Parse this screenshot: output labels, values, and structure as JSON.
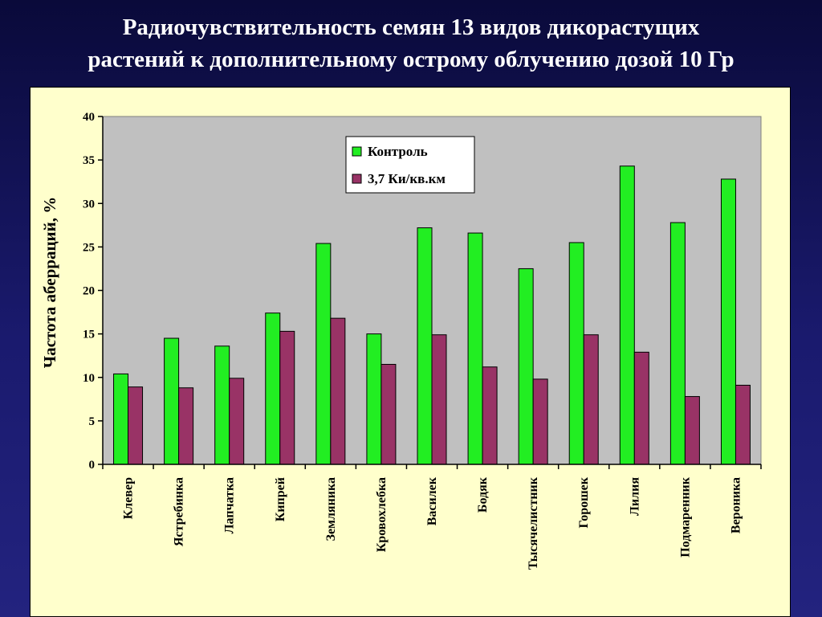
{
  "slide": {
    "title_line1": "Радиочувствительность семян 13 видов дикорастущих",
    "title_line2": "растений к дополнительному острому облучению дозой 10 Гр"
  },
  "chart_data": {
    "type": "bar",
    "title": "Радиочувствительность семян 13 видов дикорастущих растений к дополнительному острому облучению дозой 10 Гр",
    "ylabel": "Частота аберраций, %",
    "xlabel": "",
    "ylim": [
      0,
      40
    ],
    "yticks": [
      0,
      5,
      10,
      15,
      20,
      25,
      30,
      35,
      40
    ],
    "grid": false,
    "legend_position": "top-center",
    "categories": [
      "Клевер",
      "Ястребинка",
      "Лапчатка",
      "Кипрей",
      "Земляника",
      "Кровохлебка",
      "Василек",
      "Бодяк",
      "Тысячелистник",
      "Горошек",
      "Лилия",
      "Подмаренник",
      "Вероника"
    ],
    "series": [
      {
        "name": "Контроль",
        "color": "#22ee22",
        "values": [
          10.4,
          14.5,
          13.6,
          17.4,
          25.4,
          15.0,
          27.2,
          26.6,
          22.5,
          25.5,
          34.3,
          27.8,
          32.8
        ]
      },
      {
        "name": "3,7 Ки/кв.км",
        "color": "#993366",
        "values": [
          8.9,
          8.8,
          9.9,
          15.3,
          16.8,
          11.5,
          14.9,
          11.2,
          9.8,
          14.9,
          12.9,
          7.8,
          9.1
        ]
      }
    ],
    "plot_background": "#c0c0c0",
    "panel_background": "#ffffcc"
  }
}
